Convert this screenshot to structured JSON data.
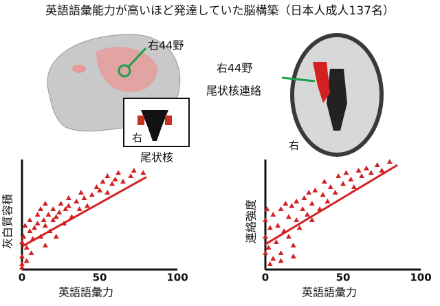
{
  "title": "英語語彙能力が高いほど発達していた脳構築（日本人成人137名）",
  "images": [
    {
      "labels": [
        "右44野",
        "右",
        "尾状核"
      ]
    },
    {
      "labels": [
        "右44野",
        "尾状核連絡",
        "右"
      ]
    }
  ],
  "chart_data": [
    {
      "type": "scatter",
      "xlabel": "英語語彙力",
      "ylabel": "灰白質容積",
      "color": "#d42020",
      "xlim": [
        0,
        100
      ],
      "xticks": [
        0,
        50,
        100
      ],
      "ylim": [
        0,
        100
      ],
      "x": [
        0,
        0,
        0,
        1,
        2,
        3,
        5,
        5,
        7,
        8,
        10,
        10,
        12,
        12,
        14,
        15,
        15,
        17,
        18,
        20,
        20,
        22,
        24,
        25,
        27,
        28,
        30,
        30,
        32,
        35,
        37,
        38,
        40,
        42,
        45,
        48,
        50,
        52,
        55,
        55,
        58,
        60,
        62,
        65,
        70,
        72,
        78,
        0,
        3,
        6,
        15,
        22
      ],
      "values": [
        5,
        12,
        25,
        30,
        40,
        20,
        35,
        45,
        28,
        38,
        42,
        50,
        30,
        55,
        45,
        40,
        60,
        50,
        35,
        45,
        55,
        48,
        52,
        60,
        42,
        55,
        58,
        65,
        48,
        62,
        55,
        70,
        65,
        58,
        68,
        75,
        72,
        80,
        70,
        85,
        78,
        82,
        88,
        80,
        85,
        90,
        88,
        2,
        8,
        15,
        22,
        30
      ],
      "fit": {
        "x": [
          0,
          80
        ],
        "y": [
          21,
          84
        ]
      }
    },
    {
      "type": "scatter",
      "xlabel": "英語語彙力",
      "ylabel": "連絡強度",
      "color": "#d42020",
      "xlim": [
        0,
        100
      ],
      "xticks": [
        0,
        50,
        100
      ],
      "ylim": [
        0,
        100
      ],
      "x": [
        0,
        0,
        0,
        1,
        2,
        3,
        5,
        5,
        7,
        8,
        10,
        10,
        12,
        13,
        15,
        15,
        17,
        18,
        20,
        20,
        22,
        24,
        25,
        27,
        28,
        30,
        30,
        32,
        35,
        37,
        38,
        40,
        42,
        45,
        47,
        50,
        52,
        55,
        57,
        60,
        62,
        65,
        68,
        72,
        75,
        80,
        3,
        10,
        18
      ],
      "values": [
        15,
        30,
        45,
        55,
        20,
        38,
        10,
        50,
        25,
        40,
        15,
        55,
        35,
        60,
        30,
        48,
        58,
        22,
        45,
        62,
        38,
        55,
        65,
        50,
        70,
        45,
        60,
        72,
        55,
        68,
        80,
        62,
        75,
        70,
        85,
        78,
        88,
        82,
        75,
        90,
        85,
        92,
        88,
        95,
        90,
        98,
        5,
        8,
        12
      ],
      "fit": {
        "x": [
          0,
          85
        ],
        "y": [
          23,
          95
        ]
      }
    }
  ]
}
